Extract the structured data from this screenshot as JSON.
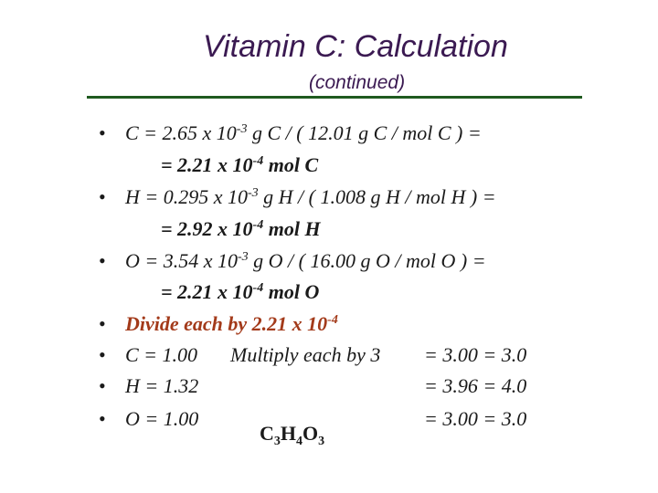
{
  "slide": {
    "title": "Vitamin C: Calculation",
    "subtitle": "(continued)",
    "bullet_symbol": "•",
    "lines": {
      "c_calc": {
        "pre": "C = 2.65 x 10",
        "exp": "-3",
        "post": " g C / ( 12.01 g C / mol C ) ="
      },
      "c_result": {
        "pre": "= 2.21 x 10",
        "exp": "-4",
        "post": " mol C"
      },
      "h_calc": {
        "pre": "H = 0.295 x 10",
        "exp": "-3",
        "post": " g H / ( 1.008 g H / mol H ) ="
      },
      "h_result": {
        "pre": "= 2.92 x 10",
        "exp": "-4",
        "post": " mol H"
      },
      "o_calc": {
        "pre": "O = 3.54 x 10",
        "exp": "-3",
        "post": " g O / ( 16.00 g O / mol O ) ="
      },
      "o_result": {
        "pre": "= 2.21 x 10",
        "exp": "-4",
        "post": "  mol O"
      },
      "divide": {
        "pre": "Divide each by 2.21 x 10",
        "exp": "-4"
      },
      "c_ratio": "C = 1.00",
      "multiply": "Multiply each by 3",
      "c_final": "= 3.00 = 3.0",
      "h_ratio": "H = 1.32",
      "h_final": "= 3.96 = 4.0",
      "o_ratio": "O = 1.00",
      "o_final": "= 3.00 = 3.0"
    },
    "formula": {
      "c": "C",
      "c_sub": "3",
      "h": "H",
      "h_sub": "4",
      "o": "O",
      "o_sub": "3"
    }
  }
}
